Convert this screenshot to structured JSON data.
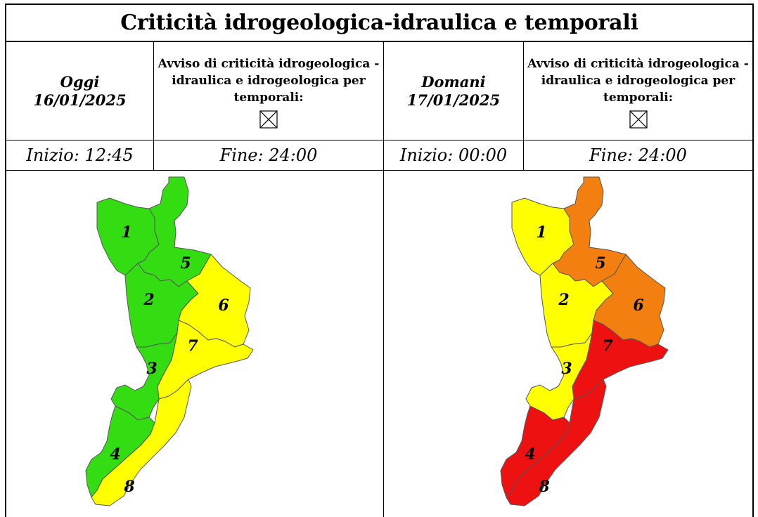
{
  "title": "Criticità idrogeologica-idraulica e temporali",
  "colors": {
    "green": "#33dd11",
    "yellow": "#ffff00",
    "orange": "#f47f11",
    "red": "#ee1111",
    "border": "#555555"
  },
  "today": {
    "label": "Oggi",
    "date": "16/01/2025",
    "warning_text_1": "Avviso di criticità idrogeologica -",
    "warning_text_2": "idraulica e idrogeologica per",
    "warning_text_3": "temporali:",
    "warning_icon": "crossed-box-icon",
    "start": "Inizio: 12:45",
    "end": "Fine: 24:00",
    "zones": [
      {
        "id": "1",
        "level": "green"
      },
      {
        "id": "2",
        "level": "green"
      },
      {
        "id": "3",
        "level": "green"
      },
      {
        "id": "4",
        "level": "green"
      },
      {
        "id": "5",
        "level": "green"
      },
      {
        "id": "6",
        "level": "yellow"
      },
      {
        "id": "7",
        "level": "yellow"
      },
      {
        "id": "8",
        "level": "yellow"
      }
    ]
  },
  "tomorrow": {
    "label": "Domani",
    "date": "17/01/2025",
    "warning_text_1": "Avviso di criticità idrogeologica -",
    "warning_text_2": "idraulica e idrogeologica per",
    "warning_text_3": "temporali:",
    "warning_icon": "crossed-box-icon",
    "start": "Inizio: 00:00",
    "end": "Fine: 24:00",
    "zones": [
      {
        "id": "1",
        "level": "yellow"
      },
      {
        "id": "2",
        "level": "yellow"
      },
      {
        "id": "3",
        "level": "yellow"
      },
      {
        "id": "4",
        "level": "red"
      },
      {
        "id": "5",
        "level": "orange"
      },
      {
        "id": "6",
        "level": "orange"
      },
      {
        "id": "7",
        "level": "red"
      },
      {
        "id": "8",
        "level": "red"
      }
    ]
  }
}
